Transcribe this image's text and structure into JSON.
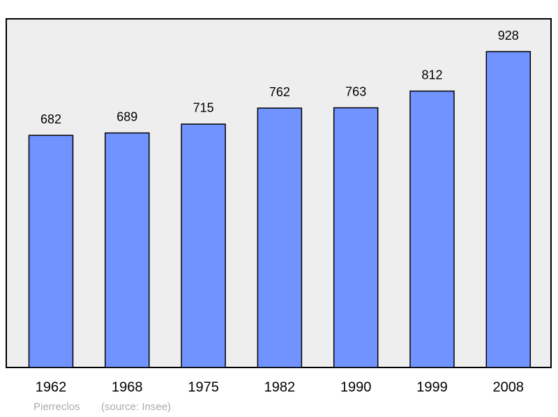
{
  "chart_data": {
    "type": "bar",
    "categories": [
      "1962",
      "1968",
      "1975",
      "1982",
      "1990",
      "1999",
      "2008"
    ],
    "values": [
      682,
      689,
      715,
      762,
      763,
      812,
      928
    ],
    "color": "#7093ff",
    "place": "Pierreclos",
    "source": "(source: Insee)"
  }
}
